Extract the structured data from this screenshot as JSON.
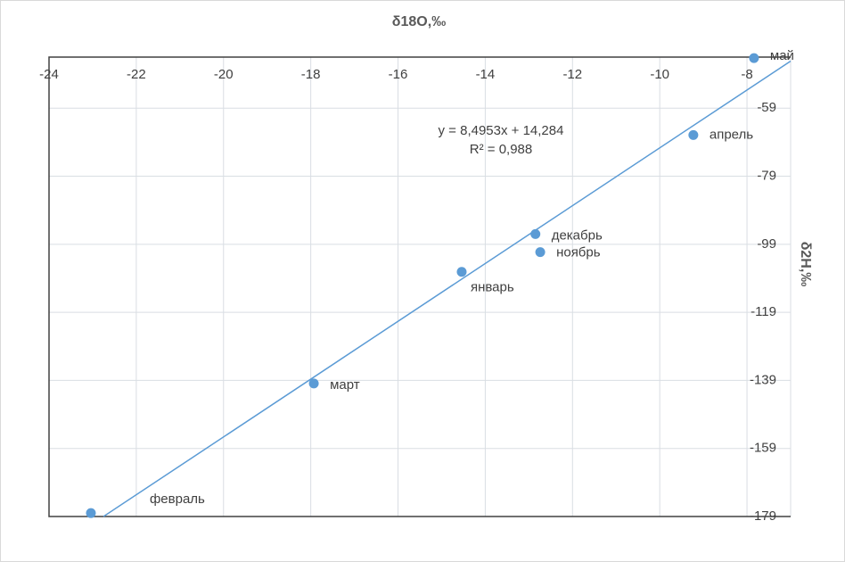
{
  "chart_data": {
    "type": "scatter",
    "title": "δ18O,‰",
    "y_label": "δ2H,‰",
    "series": [
      {
        "name": "δ2H",
        "color": "#5b9bd5",
        "labels": [
          "май",
          "апрель",
          "декабрь",
          "ноябрь",
          "январь",
          "март",
          "февраль"
        ],
        "x": [
          -7.84,
          -9.23,
          -12.85,
          -12.74,
          -14.54,
          -17.93,
          -23.04
        ],
        "values": [
          -44.3,
          -66.9,
          -96.0,
          -101.3,
          -107.1,
          -139.9,
          -178.0
        ]
      }
    ],
    "trendline": {
      "slope": 8.4953,
      "intercept": 14.284,
      "color": "#5b9bd5",
      "label": "y = 8,4953x + 14,284",
      "r2_label": "R² = 0,988"
    },
    "xlim": [
      -24,
      -7
    ],
    "xticks": [
      -24,
      -22,
      -20,
      -18,
      -16,
      -14,
      -12,
      -10,
      -8
    ],
    "ylim": [
      -179,
      -44
    ],
    "yticks": [
      -59,
      -79,
      -99,
      -119,
      -139,
      -159,
      -179
    ],
    "grid": true
  }
}
